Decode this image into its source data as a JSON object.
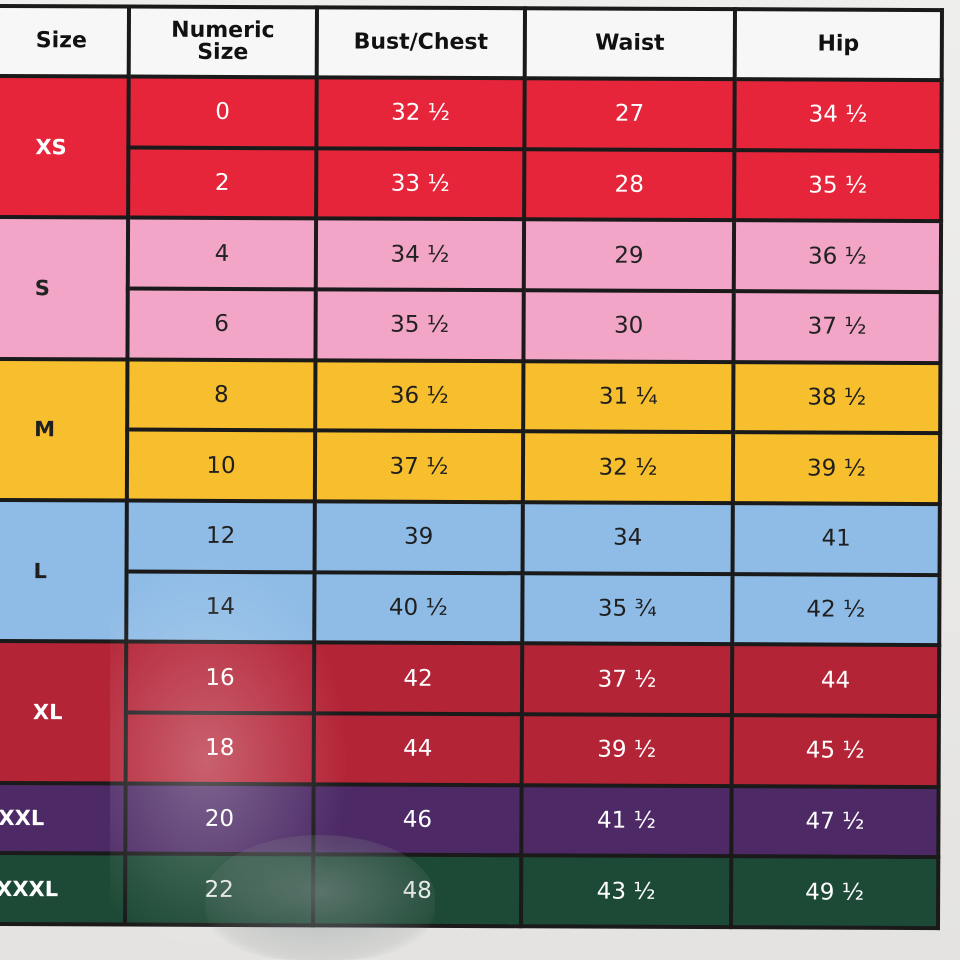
{
  "headers": {
    "size": "Size",
    "numeric_line1": "Numeric",
    "numeric_line2": "Size",
    "bust": "Bust/Chest",
    "waist": "Waist",
    "hip": "Hip"
  },
  "groups": [
    {
      "label": "XS",
      "rows": [
        {
          "numeric": "0",
          "bust": "32 ½",
          "waist": "27",
          "hip": "34 ½"
        },
        {
          "numeric": "2",
          "bust": "33 ½",
          "waist": "28",
          "hip": "35 ½"
        }
      ]
    },
    {
      "label": "S",
      "rows": [
        {
          "numeric": "4",
          "bust": "34 ½",
          "waist": "29",
          "hip": "36 ½"
        },
        {
          "numeric": "6",
          "bust": "35 ½",
          "waist": "30",
          "hip": "37 ½"
        }
      ]
    },
    {
      "label": "M",
      "rows": [
        {
          "numeric": "8",
          "bust": "36 ½",
          "waist": "31 ¼",
          "hip": "38 ½"
        },
        {
          "numeric": "10",
          "bust": "37 ½",
          "waist": "32 ½",
          "hip": "39 ½"
        }
      ]
    },
    {
      "label": "L",
      "rows": [
        {
          "numeric": "12",
          "bust": "39",
          "waist": "34",
          "hip": "41"
        },
        {
          "numeric": "14",
          "bust": "40 ½",
          "waist": "35 ¾",
          "hip": "42 ½"
        }
      ]
    },
    {
      "label": "XL",
      "rows": [
        {
          "numeric": "16",
          "bust": "42",
          "waist": "37 ½",
          "hip": "44"
        },
        {
          "numeric": "18",
          "bust": "44",
          "waist": "39 ½",
          "hip": "45 ½"
        }
      ]
    },
    {
      "label": "XXL",
      "rows": [
        {
          "numeric": "20",
          "bust": "46",
          "waist": "41 ½",
          "hip": "47 ½"
        }
      ]
    },
    {
      "label": "XXXL",
      "rows": [
        {
          "numeric": "22",
          "bust": "48",
          "waist": "43 ½",
          "hip": "49 ½"
        }
      ]
    }
  ],
  "colors": {
    "xs": "#e6243a",
    "s": "#f2a5c6",
    "m": "#f7bf2e",
    "l": "#8fbce6",
    "xl": "#b42437",
    "xxl": "#4d2a66",
    "xxxl": "#1d4a36",
    "header": "#f7f7f7",
    "grid": "#1a1a1a"
  }
}
